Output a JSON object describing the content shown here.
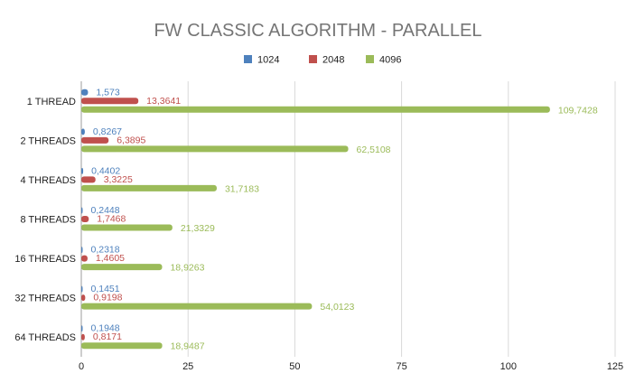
{
  "chart_data": {
    "type": "bar",
    "orientation": "horizontal",
    "title": "FW CLASSIC ALGORITHM - PARALLEL",
    "categories": [
      "1 THREAD",
      "2 THREADS",
      "4 THREADS",
      "8 THREADS",
      "16 THREADS",
      "32 THREADS",
      "64 THREADS"
    ],
    "series": [
      {
        "name": "1024",
        "color": "#4e81bd",
        "values": [
          1.573,
          0.8267,
          0.4402,
          0.2448,
          0.2318,
          0.1451,
          0.1948
        ],
        "labels": [
          "1,573",
          "0,8267",
          "0,4402",
          "0,2448",
          "0,2318",
          "0,1451",
          "0,1948"
        ]
      },
      {
        "name": "2048",
        "color": "#c0504d",
        "values": [
          13.3641,
          6.3895,
          3.3225,
          1.7468,
          1.4605,
          0.9198,
          0.8171
        ],
        "labels": [
          "13,3641",
          "6,3895",
          "3,3225",
          "1,7468",
          "1,4605",
          "0,9198",
          "0,8171"
        ]
      },
      {
        "name": "4096",
        "color": "#9bbb59",
        "values": [
          109.7428,
          62.5108,
          31.7183,
          21.3329,
          18.9263,
          54.0123,
          18.9487
        ],
        "labels": [
          "109,7428",
          "62,5108",
          "31,7183",
          "21,3329",
          "18,9263",
          "54,0123",
          "18,9487"
        ]
      }
    ],
    "xlim": [
      0,
      125
    ],
    "xticks": [
      "0",
      "25",
      "50",
      "75",
      "100",
      "125"
    ],
    "grid": true,
    "legend_position": "top"
  }
}
